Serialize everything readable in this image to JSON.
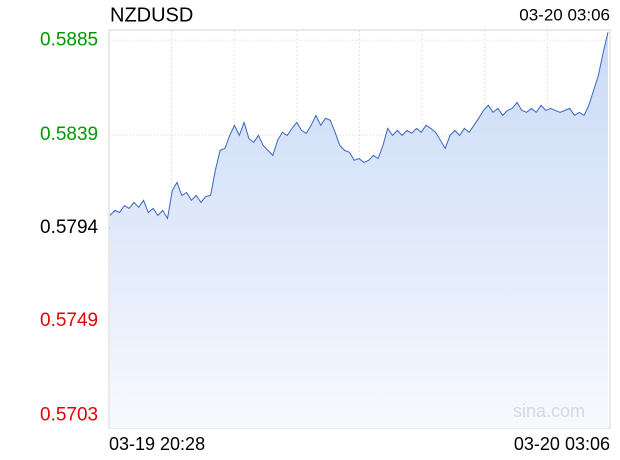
{
  "chart_data": {
    "type": "line",
    "title": "NZDUSD",
    "timestamp": "03-20 03:06",
    "watermark": "sina.com",
    "color": "#3a66c4",
    "up_color": "#009900",
    "down_color": "#e60000",
    "base_color": "#000000",
    "ylim": [
      0.5697,
      0.589
    ],
    "yticks": [
      0.5885,
      0.5839,
      0.5794,
      0.5749,
      0.5703
    ],
    "grid": true,
    "categories": [
      "03-19 20:28",
      null,
      null,
      null,
      null,
      null,
      null,
      null,
      null,
      null,
      null,
      null,
      null,
      null,
      null,
      null,
      null,
      null,
      null,
      null,
      null,
      null,
      null,
      null,
      null,
      null,
      null,
      null,
      null,
      null,
      null,
      null,
      null,
      null,
      null,
      null,
      null,
      null,
      null,
      null,
      null,
      null,
      null,
      null,
      null,
      null,
      null,
      null,
      null,
      null,
      null,
      null,
      null,
      null,
      null,
      null,
      null,
      null,
      null,
      null,
      null,
      null,
      null,
      null,
      null,
      null,
      null,
      null,
      null,
      null,
      null,
      null,
      null,
      null,
      null,
      null,
      null,
      null,
      null,
      null,
      null,
      null,
      null,
      null,
      null,
      null,
      null,
      null,
      null,
      null,
      null,
      null,
      null,
      null,
      null,
      null,
      null,
      null,
      null,
      null,
      null,
      null,
      null,
      null,
      "03-20 03:06"
    ],
    "values": [
      0.58001,
      0.58025,
      0.58015,
      0.58049,
      0.58035,
      0.58064,
      0.5804,
      0.58074,
      0.58015,
      0.58035,
      0.58001,
      0.58025,
      0.57986,
      0.58122,
      0.58161,
      0.58098,
      0.58112,
      0.58074,
      0.58098,
      0.58064,
      0.58093,
      0.58098,
      0.58219,
      0.58316,
      0.58326,
      0.58389,
      0.58438,
      0.58389,
      0.58452,
      0.58374,
      0.58355,
      0.58389,
      0.5834,
      0.58316,
      0.58292,
      0.58365,
      0.58404,
      0.58389,
      0.58423,
      0.58452,
      0.58413,
      0.58399,
      0.58438,
      0.58486,
      0.58438,
      0.58472,
      0.58462,
      0.58404,
      0.5834,
      0.58316,
      0.58307,
      0.58268,
      0.58277,
      0.58258,
      0.58268,
      0.58292,
      0.58277,
      0.5834,
      0.58423,
      0.58389,
      0.58413,
      0.58389,
      0.58413,
      0.58399,
      0.58423,
      0.58404,
      0.58438,
      0.58423,
      0.58404,
      0.58365,
      0.58326,
      0.58389,
      0.58413,
      0.58389,
      0.58423,
      0.58404,
      0.58438,
      0.58472,
      0.5851,
      0.58535,
      0.58501,
      0.5852,
      0.58486,
      0.5851,
      0.5852,
      0.58549,
      0.5851,
      0.58501,
      0.5852,
      0.58501,
      0.58535,
      0.5851,
      0.5852,
      0.5851,
      0.58501,
      0.5851,
      0.5852,
      0.58486,
      0.58501,
      0.58486,
      0.58535,
      0.58607,
      0.5868,
      0.58792,
      0.58889
    ]
  }
}
